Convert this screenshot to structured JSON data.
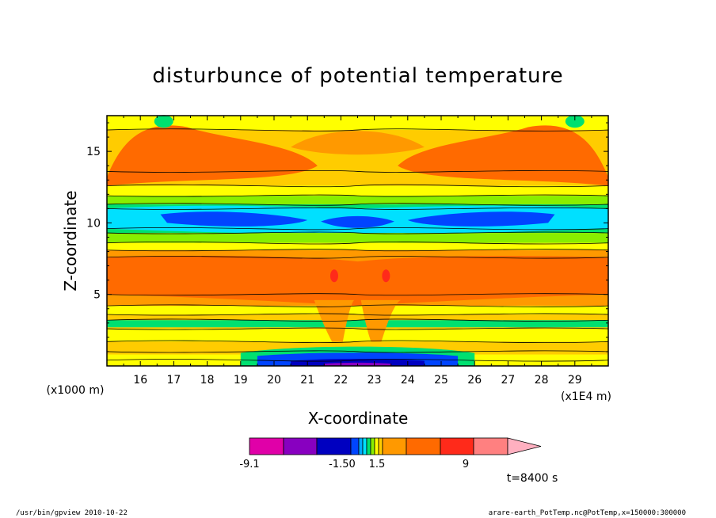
{
  "chart_data": {
    "type": "heatmap",
    "title": "disturbunce of potential temperature",
    "xlabel": "X-coordinate",
    "ylabel": "Z-coordinate",
    "x_unit": "(x1E4 m)",
    "y_unit": "(x1000 m)",
    "xlim": [
      15.0,
      30.0
    ],
    "ylim": [
      0.0,
      17.5
    ],
    "x_ticks": [
      16,
      17,
      18,
      19,
      20,
      21,
      22,
      23,
      24,
      25,
      26,
      27,
      28,
      29
    ],
    "y_ticks": [
      5,
      10,
      15
    ],
    "time_label": "t=8400 s",
    "colorbar": {
      "labels": [
        "-9.1",
        "-1.50",
        "1.5",
        "9"
      ],
      "colors": [
        "#e000a8",
        "#8800c0",
        "#0000c0",
        "#0044ff",
        "#00aaff",
        "#00e0ff",
        "#00e070",
        "#88ee00",
        "#ffff00",
        "#ffcc00",
        "#ff9900",
        "#ff6a00",
        "#ff2a1a",
        "#ff8080",
        "#ffb0c0"
      ]
    },
    "contour_bands": [
      {
        "name": "top-left yellow",
        "z_range": [
          16.5,
          17.5
        ],
        "level": "yellow"
      },
      {
        "name": "upper orange lobes",
        "z_range": [
          12.5,
          17.0
        ],
        "level": "orange"
      },
      {
        "name": "upper light orange",
        "z_range": [
          12.0,
          13.0
        ],
        "level": "light-orange"
      },
      {
        "name": "green band",
        "z_range": [
          11.3,
          11.9
        ],
        "level": "green"
      },
      {
        "name": "cyan band",
        "z_range": [
          9.3,
          11.3
        ],
        "level": "cyan"
      },
      {
        "name": "blue core",
        "z_range": [
          9.5,
          10.8
        ],
        "level": "blue"
      },
      {
        "name": "lower green",
        "z_range": [
          9.0,
          9.4
        ],
        "level": "green"
      },
      {
        "name": "yellow band",
        "z_range": [
          8.5,
          9.0
        ],
        "level": "yellow"
      },
      {
        "name": "middle orange band",
        "z_range": [
          4.8,
          8.3
        ],
        "level": "orange"
      },
      {
        "name": "red spots",
        "z_range": [
          6.0,
          6.8
        ],
        "level": "red"
      },
      {
        "name": "lower yellow",
        "z_range": [
          2.0,
          4.0
        ],
        "level": "yellow"
      },
      {
        "name": "near-surface green",
        "z_range": [
          0.7,
          1.5
        ],
        "level": "green"
      },
      {
        "name": "surface blue",
        "z_range": [
          0.0,
          0.7
        ],
        "level": "blue"
      }
    ]
  },
  "footer": {
    "left": "/usr/bin/gpview   2010-10-22",
    "right": "arare-earth_PotTemp.nc@PotTemp,x=150000:300000"
  }
}
